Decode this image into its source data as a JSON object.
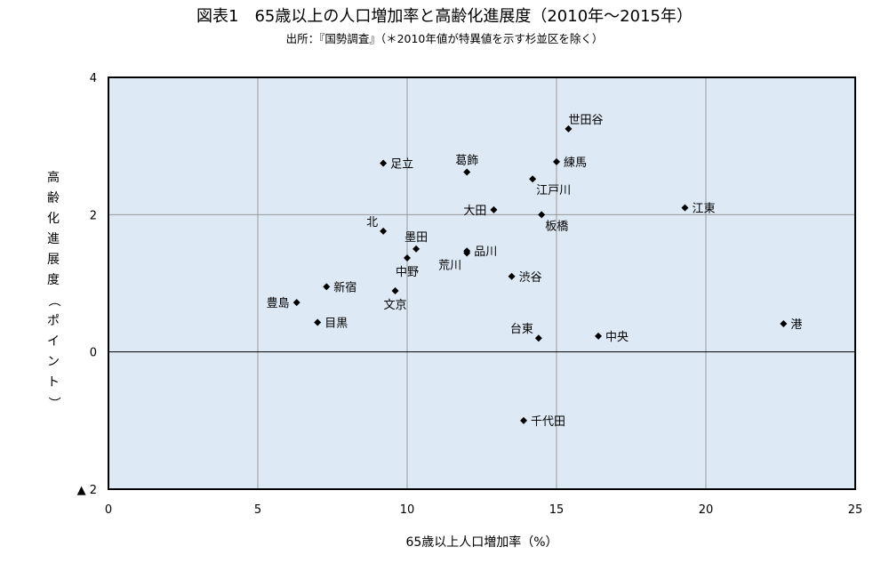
{
  "title": "図表1　65歳以上の人口増加率と高齢化進展度（2010年～2015年）",
  "subtitle": "出所：『国勢調査』（＊2010年値が特異値を示す杉並区を除く）",
  "chart_data": {
    "type": "scatter",
    "xlabel": "65歳以上人口増加率（%）",
    "ylabel": "高齢化進展度（ポイント）",
    "xlim": [
      0,
      25
    ],
    "ylim": [
      -2,
      4
    ],
    "grid": true,
    "x_ticks": [
      {
        "value": 0,
        "label": "0"
      },
      {
        "value": 5,
        "label": "5"
      },
      {
        "value": 10,
        "label": "10"
      },
      {
        "value": 15,
        "label": "15"
      },
      {
        "value": 20,
        "label": "20"
      },
      {
        "value": 25,
        "label": "25"
      }
    ],
    "y_ticks": [
      {
        "value": 4,
        "label": "4"
      },
      {
        "value": 2,
        "label": "2"
      },
      {
        "value": 0,
        "label": "0"
      },
      {
        "value": -2,
        "label": "▲ 2"
      }
    ],
    "points": [
      {
        "label": "世田谷",
        "x": 15.4,
        "y": 3.25,
        "pos": "above-right"
      },
      {
        "label": "練馬",
        "x": 15.0,
        "y": 2.77,
        "pos": "right"
      },
      {
        "label": "足立",
        "x": 9.2,
        "y": 2.75,
        "pos": "right"
      },
      {
        "label": "葛飾",
        "x": 12.0,
        "y": 2.62,
        "pos": "above"
      },
      {
        "label": "江戸川",
        "x": 14.2,
        "y": 2.52,
        "pos": "below-right"
      },
      {
        "label": "江東",
        "x": 19.3,
        "y": 2.1,
        "pos": "right"
      },
      {
        "label": "大田",
        "x": 12.9,
        "y": 2.07,
        "pos": "left"
      },
      {
        "label": "板橋",
        "x": 14.5,
        "y": 2.0,
        "pos": "below-right"
      },
      {
        "label": "北",
        "x": 9.2,
        "y": 1.76,
        "pos": "above-left"
      },
      {
        "label": "墨田",
        "x": 10.3,
        "y": 1.5,
        "pos": "above"
      },
      {
        "label": "品川",
        "x": 12.0,
        "y": 1.47,
        "pos": "right"
      },
      {
        "label": "中野",
        "x": 10.0,
        "y": 1.37,
        "pos": "below"
      },
      {
        "label": "荒川",
        "x": 12.0,
        "y": 1.44,
        "pos": "below-left"
      },
      {
        "label": "渋谷",
        "x": 13.5,
        "y": 1.1,
        "pos": "right"
      },
      {
        "label": "新宿",
        "x": 7.3,
        "y": 0.95,
        "pos": "right"
      },
      {
        "label": "文京",
        "x": 9.6,
        "y": 0.89,
        "pos": "below"
      },
      {
        "label": "豊島",
        "x": 6.3,
        "y": 0.72,
        "pos": "left"
      },
      {
        "label": "目黒",
        "x": 7.0,
        "y": 0.43,
        "pos": "right"
      },
      {
        "label": "台東",
        "x": 14.4,
        "y": 0.2,
        "pos": "above-left"
      },
      {
        "label": "中央",
        "x": 16.4,
        "y": 0.23,
        "pos": "right"
      },
      {
        "label": "港",
        "x": 22.6,
        "y": 0.41,
        "pos": "right"
      },
      {
        "label": "千代田",
        "x": 13.9,
        "y": -1.0,
        "pos": "right"
      }
    ],
    "colors": {
      "plot_background": "#dde9f5",
      "grid": "#999999",
      "frame": "#000000",
      "marker": "#000000"
    }
  }
}
